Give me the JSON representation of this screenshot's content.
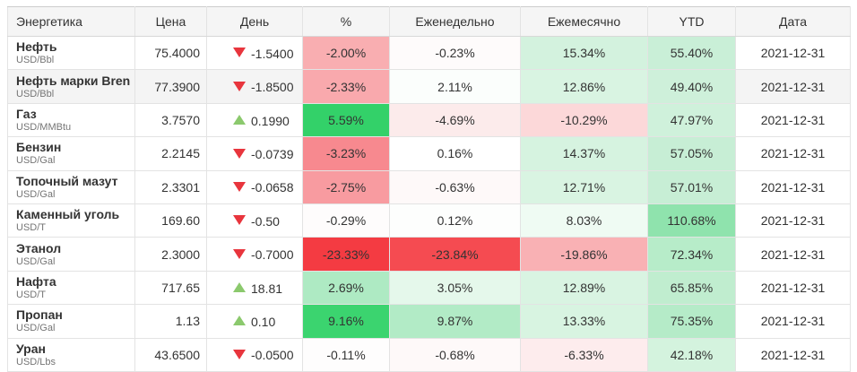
{
  "table": {
    "columns": [
      {
        "key": "name",
        "label": "Энергетика"
      },
      {
        "key": "price",
        "label": "Цена"
      },
      {
        "key": "day",
        "label": "День"
      },
      {
        "key": "pct",
        "label": "%"
      },
      {
        "key": "weekly",
        "label": "Еженедельно"
      },
      {
        "key": "monthly",
        "label": "Ежемесячно"
      },
      {
        "key": "ytd",
        "label": "YTD"
      },
      {
        "key": "date",
        "label": "Дата"
      }
    ],
    "rows": [
      {
        "name": "Нефть",
        "unit": "USD/Bbl",
        "price": "75.4000",
        "day_direction": "down",
        "day_change": "-1.5400",
        "pct": "-2.00%",
        "weekly": "-0.23%",
        "monthly": "15.34%",
        "ytd": "55.40%",
        "date": "2021-12-31",
        "highlighted": false,
        "colors": {
          "pct": "#f9aeb1",
          "weekly": "#fefbfb",
          "monthly": "#d3f2de",
          "ytd": "#c9efd7"
        }
      },
      {
        "name": "Нефть марки Bren",
        "unit": "USD/Bbl",
        "price": "77.3900",
        "day_direction": "down",
        "day_change": "-1.8500",
        "pct": "-2.33%",
        "weekly": "2.11%",
        "monthly": "12.86%",
        "ytd": "49.40%",
        "date": "2021-12-31",
        "highlighted": true,
        "colors": {
          "pct": "#f9a9ad",
          "weekly": "#fbfefc",
          "monthly": "#d9f4e2",
          "ytd": "#cef0da"
        }
      },
      {
        "name": "Газ",
        "unit": "USD/MMBtu",
        "price": "3.7570",
        "day_direction": "up",
        "day_change": "0.1990",
        "pct": "5.59%",
        "weekly": "-4.69%",
        "monthly": "-10.29%",
        "ytd": "47.97%",
        "date": "2021-12-31",
        "highlighted": false,
        "colors": {
          "pct": "#33d169",
          "weekly": "#fcebeb",
          "monthly": "#fcd8d9",
          "ytd": "#cff1db"
        }
      },
      {
        "name": "Бензин",
        "unit": "USD/Gal",
        "price": "2.2145",
        "day_direction": "down",
        "day_change": "-0.0739",
        "pct": "-3.23%",
        "weekly": "0.16%",
        "monthly": "14.37%",
        "ytd": "57.05%",
        "date": "2021-12-31",
        "highlighted": false,
        "colors": {
          "pct": "#f7898f",
          "weekly": "#ffffff",
          "monthly": "#d6f3e0",
          "ytd": "#c7eed5"
        }
      },
      {
        "name": "Топочный мазут",
        "unit": "USD/Gal",
        "price": "2.3301",
        "day_direction": "down",
        "day_change": "-0.0658",
        "pct": "-2.75%",
        "weekly": "-0.63%",
        "monthly": "12.71%",
        "ytd": "57.01%",
        "date": "2021-12-31",
        "highlighted": false,
        "colors": {
          "pct": "#f89ba0",
          "weekly": "#fef9f9",
          "monthly": "#d9f4e2",
          "ytd": "#c7eed5"
        }
      },
      {
        "name": "Каменный уголь",
        "unit": "USD/T",
        "price": "169.60",
        "day_direction": "down",
        "day_change": "-0.50",
        "pct": "-0.29%",
        "weekly": "0.12%",
        "monthly": "8.03%",
        "ytd": "110.68%",
        "date": "2021-12-31",
        "highlighted": false,
        "colors": {
          "pct": "#fefcfc",
          "weekly": "#fdfefd",
          "monthly": "#effbf3",
          "ytd": "#8fe3ad"
        }
      },
      {
        "name": "Этанол",
        "unit": "USD/Gal",
        "price": "2.3000",
        "day_direction": "down",
        "day_change": "-0.7000",
        "pct": "-23.33%",
        "weekly": "-23.84%",
        "monthly": "-19.86%",
        "ytd": "72.34%",
        "date": "2021-12-31",
        "highlighted": false,
        "colors": {
          "pct": "#f43b42",
          "weekly": "#f54b51",
          "monthly": "#f9b1b4",
          "ytd": "#b7ecc9"
        }
      },
      {
        "name": "Нафта",
        "unit": "USD/T",
        "price": "717.65",
        "day_direction": "up",
        "day_change": "18.81",
        "pct": "2.69%",
        "weekly": "3.05%",
        "monthly": "12.89%",
        "ytd": "65.85%",
        "date": "2021-12-31",
        "highlighted": false,
        "colors": {
          "pct": "#aeeac3",
          "weekly": "#e5f8eb",
          "monthly": "#d9f4e2",
          "ytd": "#c0edcf"
        }
      },
      {
        "name": "Пропан",
        "unit": "USD/Gal",
        "price": "1.13",
        "day_direction": "up",
        "day_change": "0.10",
        "pct": "9.16%",
        "weekly": "9.87%",
        "monthly": "13.33%",
        "ytd": "75.35%",
        "date": "2021-12-31",
        "highlighted": false,
        "colors": {
          "pct": "#3bd46f",
          "weekly": "#b2ebc6",
          "monthly": "#d8f4e1",
          "ytd": "#b5ebc8"
        }
      },
      {
        "name": "Уран",
        "unit": "USD/Lbs",
        "price": "43.6500",
        "day_direction": "down",
        "day_change": "-0.0500",
        "pct": "-0.11%",
        "weekly": "-0.68%",
        "monthly": "-6.33%",
        "ytd": "42.18%",
        "date": "2021-12-31",
        "highlighted": false,
        "colors": {
          "pct": "#fefdfd",
          "weekly": "#fef9f9",
          "monthly": "#fdeced",
          "ytd": "#d4f3de"
        }
      }
    ]
  },
  "colors": {
    "triangle_up": "#8bc96d",
    "triangle_down": "#e8353d",
    "header_bg": "#f5f5f5",
    "row_highlight_bg": "#f4f4f4",
    "border": "#e3e3e3",
    "text": "#333333"
  }
}
